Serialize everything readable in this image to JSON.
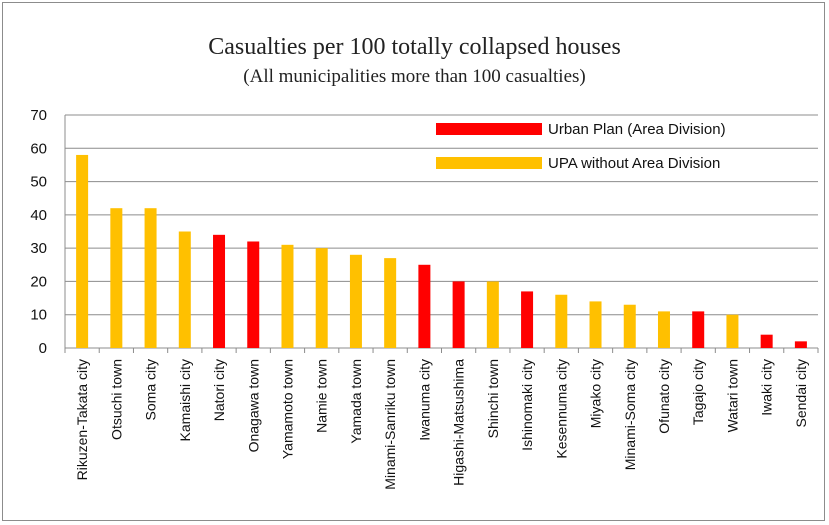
{
  "chart_data": {
    "type": "bar",
    "title": "Casualties per 100 totally collapsed houses",
    "subtitle": "(All municipalities more than 100 casualties)",
    "xlabel": "",
    "ylabel": "",
    "ylim": [
      0,
      70
    ],
    "yticks": [
      0,
      10,
      20,
      30,
      40,
      50,
      60,
      70
    ],
    "grid": true,
    "legend_position": "top-right",
    "legend": [
      {
        "key": "urban",
        "label": "Urban Plan (Area Division)",
        "color": "#ff0000"
      },
      {
        "key": "upa",
        "label": "UPA without Area Division",
        "color": "#ffc000"
      }
    ],
    "categories": [
      "Rikuzen-Takata city",
      "Otsuchi town",
      "Soma city",
      "Kamaishi city",
      "Natori city",
      "Onagawa town",
      "Yamamoto town",
      "Namie town",
      "Yamada town",
      "Minami-Sanriku town",
      "Iwanuma city",
      "Higashi-Matsushima",
      "Shinchi town",
      "Ishinomaki city",
      "Kesennuma city",
      "Miyako city",
      "Minami-Soma city",
      "Ofunato city",
      "Tagajo city",
      "Watari town",
      "Iwaki city",
      "Sendai city"
    ],
    "values": [
      58,
      42,
      42,
      35,
      34,
      32,
      31,
      30,
      28,
      27,
      25,
      20,
      20,
      17,
      16,
      14,
      13,
      11,
      11,
      10,
      4,
      2
    ],
    "groups": [
      "upa",
      "upa",
      "upa",
      "upa",
      "urban",
      "urban",
      "upa",
      "upa",
      "upa",
      "upa",
      "urban",
      "urban",
      "upa",
      "urban",
      "upa",
      "upa",
      "upa",
      "upa",
      "urban",
      "upa",
      "urban",
      "urban"
    ]
  }
}
